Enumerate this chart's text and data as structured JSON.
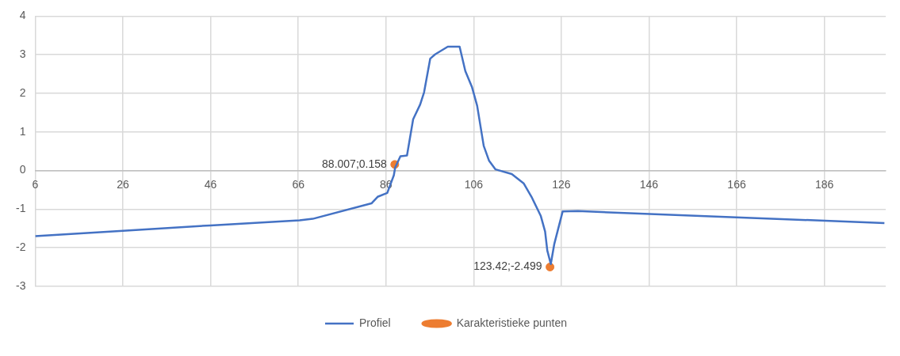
{
  "chart_data": {
    "type": "line",
    "xlim": [
      6,
      200
    ],
    "xticks": [
      6,
      26,
      46,
      66,
      86,
      106,
      126,
      146,
      166,
      186
    ],
    "ylim": [
      -3,
      4
    ],
    "yticks": [
      -3,
      -2,
      -1,
      0,
      1,
      2,
      3,
      4
    ],
    "grid": true,
    "legend": "bottom",
    "series": [
      {
        "name": "Profiel",
        "color": "#4472c4",
        "marker": "none",
        "line_style": "solid",
        "x": [
          6,
          26,
          46,
          66.3,
          69.3,
          82.7,
          84.1,
          86.3,
          87.8,
          88.1,
          89.3,
          90.8,
          92.2,
          93.8,
          94.7,
          96.1,
          97.2,
          100.1,
          102.8,
          104.1,
          105.6,
          106.8,
          108.3,
          109.5,
          111.0,
          114.7,
          117.4,
          119.2,
          121.3,
          122.3,
          122.8,
          123.6,
          124.4,
          126.3,
          129.8,
          199.7
        ],
        "values": [
          -1.7,
          -1.56,
          -1.42,
          -1.29,
          -1.25,
          -0.85,
          -0.68,
          -0.58,
          -0.12,
          0.08,
          0.37,
          0.39,
          1.33,
          1.71,
          2.03,
          2.9,
          3.01,
          3.21,
          3.21,
          2.58,
          2.17,
          1.68,
          0.64,
          0.26,
          0.03,
          -0.09,
          -0.33,
          -0.68,
          -1.17,
          -1.58,
          -2.07,
          -2.42,
          -1.9,
          -1.06,
          -1.05,
          -1.36
        ]
      },
      {
        "name": "Karakteristieke punten",
        "type": "scatter",
        "color": "#ed7d31",
        "marker": "circle",
        "x": [
          88.007,
          123.42
        ],
        "values": [
          0.158,
          -2.499
        ],
        "value_labels": [
          "88.007;0.158",
          "123.42;-2.499"
        ]
      }
    ]
  }
}
